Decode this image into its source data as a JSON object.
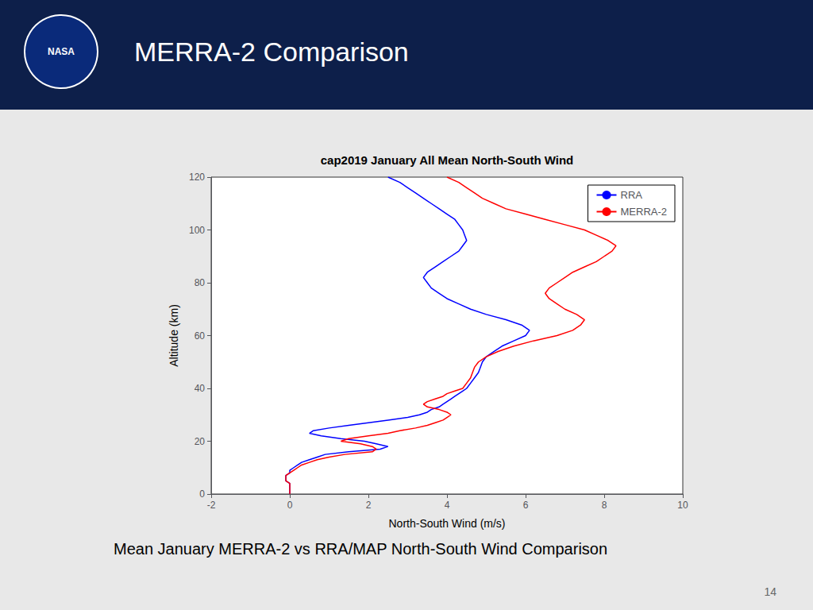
{
  "chart_data": {
    "type": "line",
    "title": "cap2019 January All Mean North-South Wind",
    "subtitle": "Mean January MERRA-2 vs RRA/MAP North-South Wind Comparison",
    "annotations": [
      "NASA",
      "MERRA-2 Comparison",
      "14"
    ],
    "xlabel": "North-South Wind (m/s)",
    "ylabel": "Altitude (km)",
    "xlim": [
      -2,
      10
    ],
    "ylim": [
      0,
      120
    ],
    "xticks": [
      -2,
      0,
      2,
      4,
      6,
      8,
      10
    ],
    "yticks": [
      0,
      20,
      40,
      60,
      80,
      100,
      120
    ],
    "grid": false,
    "legend": "upper right",
    "series": [
      {
        "name": "RRA",
        "color": "#0000ff",
        "x": [
          0.0,
          0.0,
          0.0,
          0.0,
          0.0,
          -0.1,
          -0.1,
          -0.1,
          0.0,
          0.0,
          0.1,
          0.2,
          0.3,
          0.5,
          0.7,
          0.9,
          1.5,
          2.3,
          2.5,
          2.2,
          1.9,
          1.3,
          0.8,
          0.5,
          0.6,
          1.0,
          1.5,
          2.0,
          2.5,
          3.0,
          3.3,
          3.5,
          3.6,
          3.8,
          3.9,
          4.0,
          4.1,
          4.2,
          4.3,
          4.4,
          4.5,
          4.6,
          4.7,
          4.8,
          4.85,
          4.9,
          5.0,
          5.2,
          5.4,
          5.7,
          6.0,
          6.1,
          5.9,
          5.5,
          5.0,
          4.6,
          4.3,
          4.0,
          3.8,
          3.6,
          3.5,
          3.4,
          3.5,
          3.7,
          3.9,
          4.1,
          4.3,
          4.4,
          4.5,
          4.45,
          4.4,
          4.3,
          4.2,
          4.0,
          3.8,
          3.6,
          3.4,
          3.2,
          3.0,
          2.8,
          2.5
        ],
        "values": [
          0,
          1,
          2,
          3,
          4,
          5,
          6,
          7,
          8,
          9,
          10,
          11,
          12,
          13,
          14,
          15,
          16,
          17,
          18,
          19,
          20,
          21,
          22,
          23,
          24,
          25,
          26,
          27,
          28,
          29,
          30,
          31,
          32,
          33,
          34,
          35,
          36,
          37,
          38,
          39,
          40,
          42,
          44,
          46,
          48,
          50,
          52,
          54,
          56,
          58,
          60,
          62,
          64,
          66,
          68,
          70,
          72,
          74,
          76,
          78,
          80,
          82,
          84,
          86,
          88,
          90,
          92,
          94,
          96,
          98,
          100,
          102,
          104,
          106,
          108,
          110,
          112,
          114,
          116,
          118,
          120
        ]
      },
      {
        "name": "MERRA-2",
        "color": "#ff0000",
        "x": [
          0.0,
          0.0,
          0.0,
          0.0,
          0.0,
          -0.1,
          -0.1,
          -0.1,
          0.0,
          0.1,
          0.2,
          0.3,
          0.5,
          0.7,
          1.0,
          1.4,
          2.1,
          2.2,
          2.1,
          1.8,
          1.3,
          1.5,
          2.0,
          2.5,
          2.8,
          3.2,
          3.5,
          3.7,
          3.9,
          4.0,
          4.1,
          4.0,
          3.8,
          3.5,
          3.4,
          3.5,
          3.7,
          3.9,
          4.0,
          4.2,
          4.4,
          4.5,
          4.6,
          4.65,
          4.7,
          4.8,
          5.0,
          5.3,
          5.7,
          6.2,
          6.8,
          7.2,
          7.4,
          7.5,
          7.3,
          7.0,
          6.8,
          6.6,
          6.5,
          6.6,
          6.8,
          7.0,
          7.2,
          7.5,
          7.8,
          8.0,
          8.2,
          8.3,
          8.1,
          7.8,
          7.5,
          7.0,
          6.5,
          6.0,
          5.5,
          5.2,
          4.9,
          4.7,
          4.5,
          4.3,
          4.0
        ],
        "values": [
          0,
          1,
          2,
          3,
          4,
          5,
          6,
          7,
          8,
          9,
          10,
          11,
          12,
          13,
          14,
          15,
          16,
          17,
          18,
          19,
          20,
          21,
          22,
          23,
          24,
          25,
          26,
          27,
          28,
          29,
          30,
          31,
          32,
          33,
          34,
          35,
          36,
          37,
          38,
          39,
          40,
          42,
          44,
          46,
          48,
          50,
          52,
          54,
          56,
          58,
          60,
          62,
          64,
          66,
          68,
          70,
          72,
          74,
          76,
          78,
          80,
          82,
          84,
          86,
          88,
          90,
          92,
          94,
          96,
          98,
          100,
          102,
          104,
          106,
          108,
          110,
          112,
          114,
          116,
          118,
          120
        ]
      }
    ]
  }
}
